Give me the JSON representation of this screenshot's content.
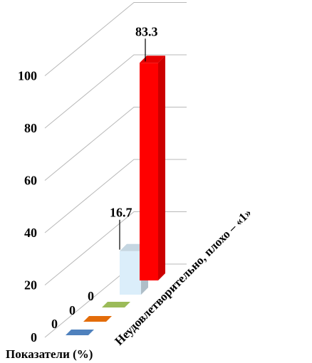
{
  "chart_data": {
    "type": "bar",
    "subtype": "3d-depth",
    "xlabel": "Показатели (%)",
    "yticks": [
      "0",
      "20",
      "40",
      "60",
      "80",
      "100"
    ],
    "ylim": [
      0,
      100
    ],
    "grid": true,
    "category_label": "Неудовлетворительно, плохо – «1»",
    "series": [
      {
        "label": "0",
        "value": 0,
        "color": "#4f81bd"
      },
      {
        "label": "0",
        "value": 0,
        "color": "#e36c0a"
      },
      {
        "label": "0",
        "value": 0,
        "color": "#9bbb59"
      },
      {
        "label": "16.7",
        "value": 16.7,
        "color": "#dbeefa"
      },
      {
        "label": "83.3",
        "value": 83.3,
        "color": "#ff0000"
      }
    ]
  }
}
